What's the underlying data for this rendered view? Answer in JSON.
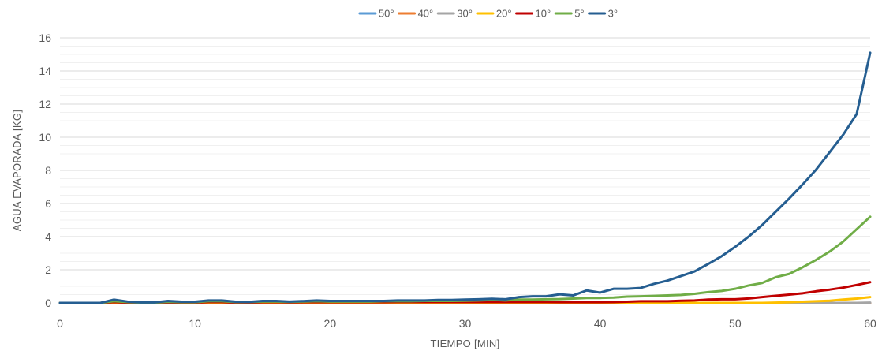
{
  "chart_data": {
    "type": "line",
    "xlabel": "TIEMPO [MIN]",
    "ylabel": "AGUA EVAPORADA  [KG]",
    "xlim": [
      0,
      60
    ],
    "ylim": [
      0,
      16
    ],
    "xticks": [
      0,
      10,
      20,
      30,
      40,
      50,
      60
    ],
    "yticks": [
      0,
      2,
      4,
      6,
      8,
      10,
      12,
      14,
      16
    ],
    "grid": true,
    "legend_position": "top",
    "x": [
      0,
      1,
      2,
      3,
      4,
      5,
      6,
      7,
      8,
      9,
      10,
      11,
      12,
      13,
      14,
      15,
      16,
      17,
      18,
      19,
      20,
      21,
      22,
      23,
      24,
      25,
      26,
      27,
      28,
      29,
      30,
      31,
      32,
      33,
      34,
      35,
      36,
      37,
      38,
      39,
      40,
      41,
      42,
      43,
      44,
      45,
      46,
      47,
      48,
      49,
      50,
      51,
      52,
      53,
      54,
      55,
      56,
      57,
      58,
      59,
      60
    ],
    "series": [
      {
        "name": "50°",
        "color": "#5B9BD5",
        "values": [
          0,
          0,
          0,
          0,
          0,
          0,
          0,
          0,
          0,
          0,
          0,
          0,
          0,
          0,
          0,
          0,
          0,
          0,
          0,
          0,
          0,
          0,
          0,
          0,
          0,
          0,
          0,
          0,
          0,
          0,
          0,
          0,
          0,
          0,
          0,
          0,
          0,
          0,
          0,
          0,
          0,
          0,
          0,
          0,
          0,
          0,
          0,
          0,
          0,
          0,
          0,
          0,
          0,
          0,
          0,
          0,
          0,
          0,
          0,
          0,
          0
        ]
      },
      {
        "name": "40°",
        "color": "#ED7D31",
        "values": [
          0,
          0,
          0,
          0,
          0,
          0,
          0,
          0,
          0,
          0,
          0,
          0,
          0,
          0,
          0,
          0,
          0,
          0,
          0,
          0,
          0,
          0,
          0,
          0,
          0,
          0,
          0,
          0,
          0,
          0,
          0,
          0,
          0,
          0,
          0,
          0,
          0,
          0,
          0,
          0,
          0,
          0,
          0,
          0,
          0,
          0,
          0,
          0,
          0,
          0,
          0,
          0,
          0,
          0,
          0,
          0,
          0,
          0,
          0,
          0,
          0
        ]
      },
      {
        "name": "30°",
        "color": "#A5A5A5",
        "values": [
          0,
          0,
          0,
          0,
          0,
          0,
          0,
          0,
          0,
          0,
          0,
          0,
          0,
          0,
          0,
          0,
          0,
          0,
          0,
          0,
          0,
          0,
          0,
          0,
          0,
          0,
          0,
          0,
          0,
          0,
          0,
          0,
          0,
          0,
          0,
          0,
          0,
          0,
          0,
          0,
          0,
          0,
          0,
          0,
          0,
          0,
          0,
          0,
          0,
          0,
          0,
          0,
          0,
          0,
          0,
          0,
          0,
          0,
          0,
          0,
          0.02
        ]
      },
      {
        "name": "20°",
        "color": "#FFC000",
        "values": [
          0,
          0,
          0,
          0,
          0,
          0,
          0,
          0,
          0,
          0,
          0,
          0,
          0,
          0,
          0,
          0,
          0,
          0,
          0,
          0,
          0,
          0,
          0,
          0,
          0,
          0,
          0,
          0,
          0,
          0,
          0,
          0,
          0,
          0,
          0,
          0,
          0,
          0,
          0,
          0,
          0,
          0,
          0,
          0,
          0,
          0,
          0,
          0,
          0,
          0,
          0,
          0,
          0,
          0.02,
          0.04,
          0.07,
          0.1,
          0.13,
          0.2,
          0.26,
          0.35
        ]
      },
      {
        "name": "10°",
        "color": "#C00000",
        "values": [
          0,
          0,
          0,
          0,
          0.05,
          0.02,
          0,
          0,
          0.02,
          0.02,
          0.02,
          0.05,
          0.05,
          0.02,
          0.02,
          0.04,
          0.05,
          0.03,
          0.04,
          0.05,
          0.04,
          0.04,
          0.04,
          0.04,
          0.04,
          0.05,
          0.05,
          0.05,
          0.05,
          0.05,
          0.05,
          0.05,
          0.05,
          0.05,
          0.05,
          0.05,
          0.05,
          0.04,
          0.04,
          0.04,
          0.04,
          0.05,
          0.07,
          0.1,
          0.1,
          0.1,
          0.13,
          0.15,
          0.2,
          0.22,
          0.22,
          0.27,
          0.35,
          0.43,
          0.5,
          0.58,
          0.7,
          0.8,
          0.92,
          1.08,
          1.25
        ]
      },
      {
        "name": "5°",
        "color": "#70AD47",
        "values": [
          0,
          0,
          0,
          0,
          0.1,
          0.05,
          0.02,
          0.02,
          0.06,
          0.04,
          0.04,
          0.1,
          0.1,
          0.05,
          0.05,
          0.08,
          0.08,
          0.06,
          0.08,
          0.1,
          0.08,
          0.08,
          0.08,
          0.08,
          0.1,
          0.1,
          0.1,
          0.12,
          0.12,
          0.12,
          0.13,
          0.15,
          0.18,
          0.15,
          0.2,
          0.2,
          0.22,
          0.23,
          0.26,
          0.3,
          0.3,
          0.32,
          0.38,
          0.4,
          0.42,
          0.45,
          0.48,
          0.55,
          0.65,
          0.72,
          0.85,
          1.05,
          1.2,
          1.55,
          1.75,
          2.15,
          2.6,
          3.1,
          3.7,
          4.45,
          5.2
        ]
      },
      {
        "name": "3°",
        "color": "#255E91",
        "values": [
          0,
          0,
          0,
          0,
          0.2,
          0.08,
          0.03,
          0.03,
          0.12,
          0.07,
          0.07,
          0.15,
          0.15,
          0.07,
          0.06,
          0.12,
          0.12,
          0.08,
          0.11,
          0.15,
          0.12,
          0.12,
          0.12,
          0.12,
          0.12,
          0.15,
          0.15,
          0.15,
          0.18,
          0.18,
          0.2,
          0.22,
          0.25,
          0.22,
          0.35,
          0.4,
          0.4,
          0.52,
          0.45,
          0.75,
          0.62,
          0.85,
          0.85,
          0.9,
          1.15,
          1.35,
          1.62,
          1.9,
          2.35,
          2.82,
          3.38,
          4.0,
          4.7,
          5.5,
          6.3,
          7.15,
          8.05,
          9.1,
          10.15,
          11.4,
          15.1
        ]
      }
    ]
  }
}
